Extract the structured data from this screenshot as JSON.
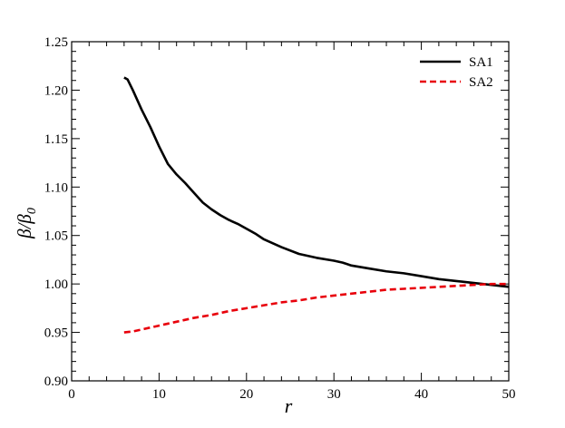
{
  "chart_data": {
    "type": "line",
    "title": "",
    "xlabel": "r",
    "ylabel": "β/β0",
    "ylabel_parts": {
      "main": "β/β",
      "sub": "0"
    },
    "xlim": [
      0,
      50
    ],
    "ylim": [
      0.9,
      1.25
    ],
    "grid": false,
    "legend_position": "top-right",
    "x_ticks": [
      0,
      10,
      20,
      30,
      40,
      50
    ],
    "x_tick_labels": [
      "0",
      "10",
      "20",
      "30",
      "40",
      "50"
    ],
    "y_ticks": [
      0.9,
      0.95,
      1.0,
      1.05,
      1.1,
      1.15,
      1.2,
      1.25
    ],
    "y_tick_labels": [
      "0.90",
      "0.95",
      "1.00",
      "1.05",
      "1.10",
      "1.15",
      "1.20",
      "1.25"
    ],
    "series": [
      {
        "name": "SA1",
        "color": "#000000",
        "style": "solid",
        "x": [
          6.0,
          6.4,
          7,
          8,
          9,
          10,
          11,
          12,
          13,
          14,
          15,
          16,
          17,
          18,
          19,
          20,
          21,
          22,
          24,
          26,
          28,
          30,
          31,
          32,
          34,
          36,
          38,
          40,
          42,
          44,
          46,
          48,
          50
        ],
        "y": [
          1.213,
          1.211,
          1.2,
          1.18,
          1.162,
          1.142,
          1.124,
          1.113,
          1.104,
          1.094,
          1.084,
          1.077,
          1.071,
          1.066,
          1.062,
          1.057,
          1.052,
          1.046,
          1.038,
          1.031,
          1.027,
          1.024,
          1.022,
          1.019,
          1.016,
          1.013,
          1.011,
          1.008,
          1.005,
          1.003,
          1.001,
          0.999,
          0.997
        ]
      },
      {
        "name": "SA2",
        "color": "#e8000b",
        "style": "dashed",
        "x": [
          6.0,
          7,
          8,
          10,
          12,
          14,
          16,
          18,
          20,
          22,
          24,
          26,
          28,
          30,
          32,
          34,
          36,
          38,
          40,
          42,
          44,
          46,
          48,
          50
        ],
        "y": [
          0.95,
          0.951,
          0.953,
          0.957,
          0.961,
          0.965,
          0.968,
          0.972,
          0.975,
          0.978,
          0.981,
          0.983,
          0.986,
          0.988,
          0.99,
          0.992,
          0.994,
          0.995,
          0.996,
          0.997,
          0.998,
          0.999,
          1.0,
          1.0
        ]
      }
    ]
  }
}
